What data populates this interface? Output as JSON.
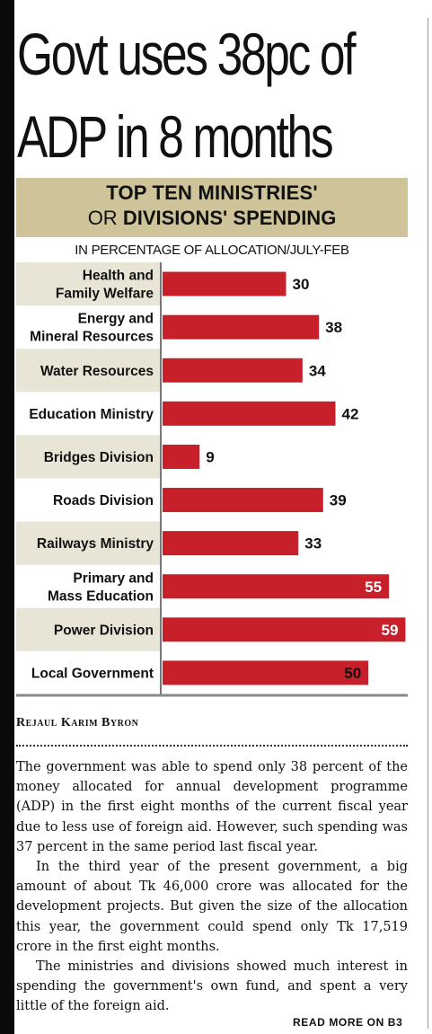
{
  "headline": {
    "line1": "Govt uses 38pc of",
    "line2": "ADP in 8 months"
  },
  "chart_header": {
    "line1": "TOP TEN MINISTRIES'",
    "line2_prefix": "OR ",
    "line2_bold": "DIVISIONS' SPENDING",
    "subtitle": "IN PERCENTAGE OF ALLOCATION/JULY-FEB"
  },
  "chart_data": {
    "type": "bar",
    "orientation": "horizontal",
    "title": "TOP TEN MINISTRIES' OR DIVISIONS' SPENDING",
    "subtitle": "IN PERCENTAGE OF ALLOCATION/JULY-FEB",
    "categories": [
      [
        "Health and",
        "Family Welfare"
      ],
      [
        "Energy and",
        "Mineral Resources"
      ],
      [
        "Water Resources"
      ],
      [
        "Education Ministry"
      ],
      [
        "Bridges Division"
      ],
      [
        "Roads Division"
      ],
      [
        "Railways Ministry"
      ],
      [
        "Primary and",
        "Mass Education"
      ],
      [
        "Power Division"
      ],
      [
        "Local Government"
      ]
    ],
    "values": [
      30,
      38,
      34,
      42,
      9,
      39,
      33,
      55,
      59,
      50
    ],
    "xlim": [
      0,
      60
    ],
    "bar_color": "#c8202a",
    "band_color": "#e8e4d6",
    "grid": false
  },
  "byline": "Rejaul Karim Byron",
  "article": {
    "paragraphs": [
      "The government was able to spend only 38 percent of the money allocated for annual development programme (ADP) in the first eight months of the current fiscal year due to less use of foreign aid. However, such spending was 37 percent in the same period last fiscal year.",
      "In the third year of the present government, a big amount of about Tk 46,000 crore was allocated for the development projects. But given the size of the allocation this year, the government could spend only Tk 17,519 crore in the first eight months.",
      "The ministries and divisions  showed much interest in spending the government's own fund, and spent a very little of the foreign aid."
    ]
  },
  "read_more": "READ MORE ON B3"
}
